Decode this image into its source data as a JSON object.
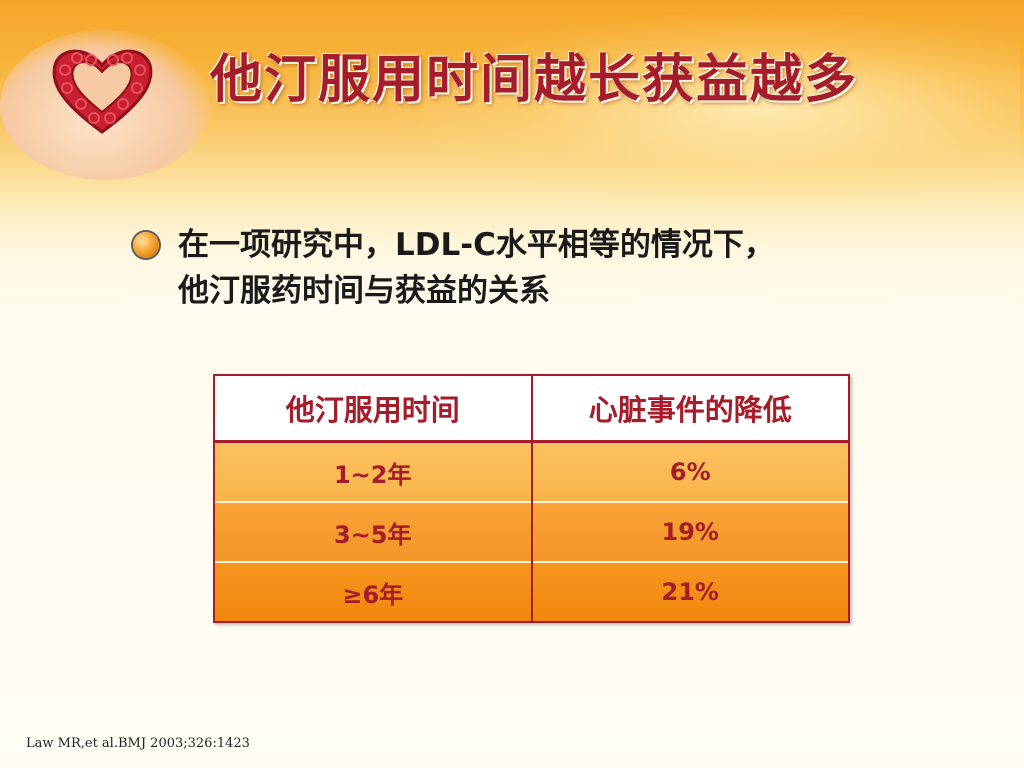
{
  "slide": {
    "title": "他汀服用时间越长获益越多",
    "intro_lines": [
      "在一项研究中，LDL-C水平相等的情况下，",
      "他汀服药时间与获益的关系"
    ],
    "table": {
      "headers": [
        "他汀服用时间",
        "心脏事件的降低"
      ],
      "rows": [
        [
          "1~2年",
          "6%"
        ],
        [
          "3~5年",
          "19%"
        ],
        [
          "≥6年",
          "21%"
        ]
      ]
    },
    "citation": "Law MR,et al.BMJ 2003;326:1423"
  },
  "colors": {
    "title_red": "#a51c2a",
    "header_bg": "#ffffff",
    "row_orange_light": "#fbc15f",
    "row_orange_mid": "#f8a337",
    "row_orange_dark": "#f2870f"
  },
  "icons": [
    "heart-knot-icon",
    "bullet-circle-icon"
  ]
}
